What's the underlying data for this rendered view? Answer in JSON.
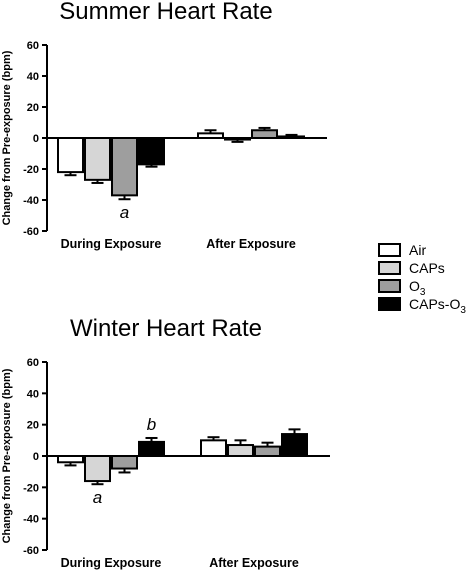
{
  "chart_data": [
    {
      "type": "bar",
      "title": "Summer Heart Rate",
      "xlabel": "",
      "ylabel": "Change from Pre-exposure (bpm)",
      "ylim": [
        -60,
        60
      ],
      "yticks": [
        60,
        40,
        20,
        0,
        -20,
        -40,
        -60
      ],
      "categories": [
        "During Exposure",
        "After Exposure"
      ],
      "series": [
        {
          "name": "Air",
          "values": [
            -22,
            3
          ],
          "errors": [
            2,
            2
          ]
        },
        {
          "name": "CAPs",
          "values": [
            -27,
            -1
          ],
          "errors": [
            2,
            1.5
          ]
        },
        {
          "name": "O3",
          "values": [
            -37,
            5
          ],
          "errors": [
            2.5,
            1.5
          ]
        },
        {
          "name": "CAPs-O3",
          "values": [
            -17,
            1
          ],
          "errors": [
            1.5,
            1
          ]
        }
      ],
      "annotations": [
        {
          "text": "a",
          "category": "During Exposure",
          "series": "O3"
        }
      ],
      "legend_position": "right"
    },
    {
      "type": "bar",
      "title": "Winter Heart Rate",
      "xlabel": "",
      "ylabel": "Change from Pre-exposure (bpm)",
      "ylim": [
        -60,
        60
      ],
      "yticks": [
        60,
        40,
        20,
        0,
        -20,
        -40,
        -60
      ],
      "categories": [
        "During Exposure",
        "After Exposure"
      ],
      "series": [
        {
          "name": "Air",
          "values": [
            -4,
            10
          ],
          "errors": [
            2,
            2
          ]
        },
        {
          "name": "CAPs",
          "values": [
            -16,
            7
          ],
          "errors": [
            2,
            3
          ]
        },
        {
          "name": "O3",
          "values": [
            -8,
            6
          ],
          "errors": [
            2.5,
            2.5
          ]
        },
        {
          "name": "CAPs-O3",
          "values": [
            9,
            14
          ],
          "errors": [
            2.5,
            3
          ]
        }
      ],
      "annotations": [
        {
          "text": "a",
          "category": "During Exposure",
          "series": "CAPs"
        },
        {
          "text": "b",
          "category": "During Exposure",
          "series": "CAPs-O3"
        }
      ],
      "legend_position": "right"
    }
  ],
  "legend": {
    "items": [
      {
        "label": "Air",
        "sub": "",
        "color": "#ffffff"
      },
      {
        "label": "CAPs",
        "sub": "",
        "color": "#d6d6d6"
      },
      {
        "label": "O",
        "sub": "3",
        "color": "#9e9e9e"
      },
      {
        "label": "CAPs-O",
        "sub": "3",
        "color": "#000000"
      }
    ]
  },
  "colors": {
    "air": "#ffffff",
    "caps": "#d6d6d6",
    "o3": "#9e9e9e",
    "caps_o3": "#000000",
    "axis": "#000000"
  }
}
